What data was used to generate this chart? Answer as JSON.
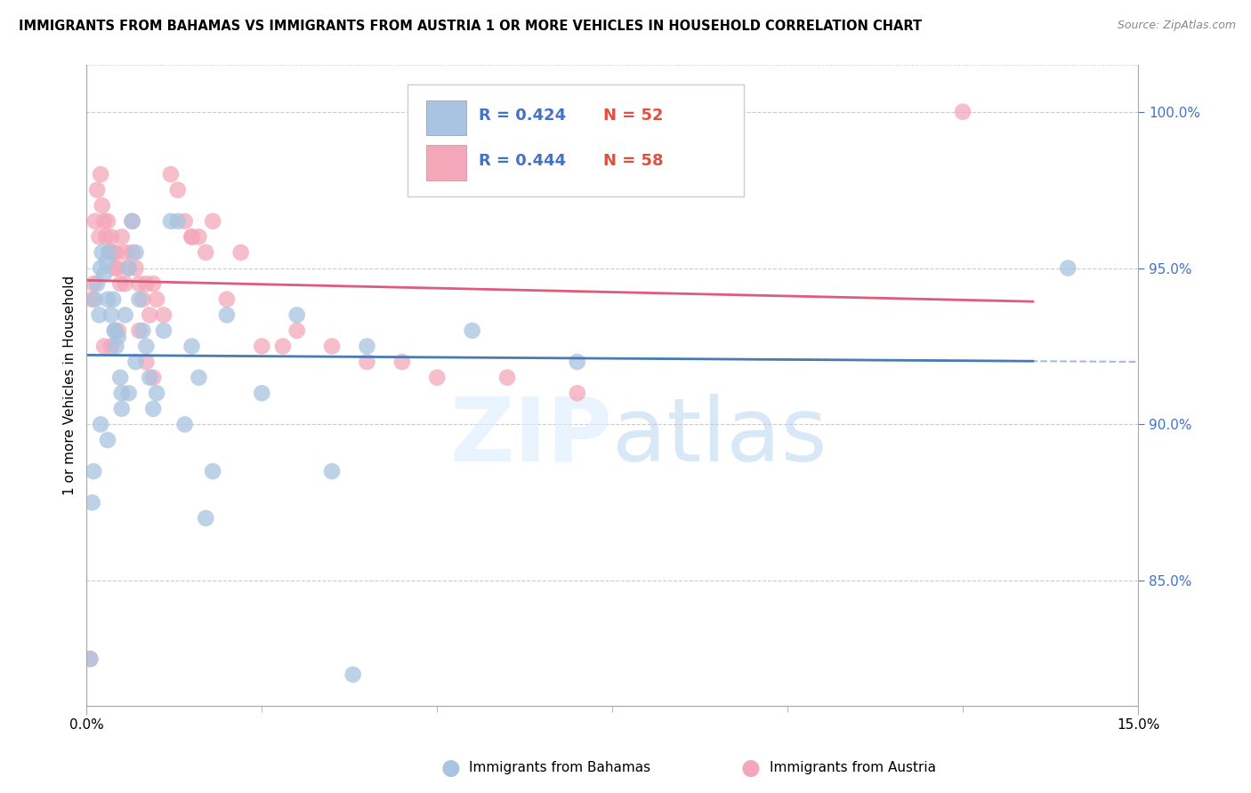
{
  "title": "IMMIGRANTS FROM BAHAMAS VS IMMIGRANTS FROM AUSTRIA 1 OR MORE VEHICLES IN HOUSEHOLD CORRELATION CHART",
  "source": "Source: ZipAtlas.com",
  "ylabel": "1 or more Vehicles in Household",
  "xlim": [
    0.0,
    15.0
  ],
  "ylim": [
    81.0,
    101.5
  ],
  "bahamas_R": 0.424,
  "bahamas_N": 52,
  "austria_R": 0.444,
  "austria_N": 58,
  "bahamas_color": "#a8c4e0",
  "austria_color": "#f4a7b9",
  "bahamas_line_color": "#4a7ab5",
  "austria_line_color": "#e05a7a",
  "background_color": "#ffffff",
  "grid_color": "#cccccc",
  "bahamas_x": [
    0.05,
    0.08,
    0.1,
    0.12,
    0.15,
    0.18,
    0.2,
    0.22,
    0.25,
    0.28,
    0.3,
    0.32,
    0.35,
    0.38,
    0.4,
    0.42,
    0.45,
    0.48,
    0.5,
    0.55,
    0.6,
    0.65,
    0.7,
    0.75,
    0.8,
    0.85,
    0.9,
    0.95,
    1.0,
    1.1,
    1.2,
    1.3,
    1.4,
    1.5,
    1.6,
    1.7,
    1.8,
    2.0,
    2.5,
    3.0,
    3.5,
    4.0,
    5.5,
    7.0,
    0.2,
    0.3,
    0.4,
    0.5,
    0.6,
    0.7,
    14.0,
    3.8
  ],
  "bahamas_y": [
    82.5,
    87.5,
    88.5,
    94.0,
    94.5,
    93.5,
    95.0,
    95.5,
    94.8,
    95.2,
    94.0,
    95.5,
    93.5,
    94.0,
    93.0,
    92.5,
    92.8,
    91.5,
    91.0,
    93.5,
    95.0,
    96.5,
    95.5,
    94.0,
    93.0,
    92.5,
    91.5,
    90.5,
    91.0,
    93.0,
    96.5,
    96.5,
    90.0,
    92.5,
    91.5,
    87.0,
    88.5,
    93.5,
    91.0,
    93.5,
    88.5,
    92.5,
    93.0,
    92.0,
    90.0,
    89.5,
    93.0,
    90.5,
    91.0,
    92.0,
    95.0,
    82.0
  ],
  "austria_x": [
    0.05,
    0.08,
    0.1,
    0.12,
    0.15,
    0.18,
    0.2,
    0.22,
    0.25,
    0.28,
    0.3,
    0.32,
    0.35,
    0.38,
    0.4,
    0.42,
    0.45,
    0.48,
    0.5,
    0.55,
    0.6,
    0.65,
    0.7,
    0.75,
    0.8,
    0.85,
    0.9,
    0.95,
    1.0,
    1.1,
    1.2,
    1.3,
    1.4,
    1.5,
    1.6,
    1.7,
    1.8,
    2.0,
    2.2,
    2.5,
    2.8,
    3.0,
    3.5,
    4.0,
    4.5,
    5.0,
    6.0,
    7.0,
    0.25,
    0.35,
    0.45,
    0.55,
    0.65,
    0.75,
    0.85,
    0.95,
    12.5,
    1.5
  ],
  "austria_y": [
    82.5,
    94.0,
    94.5,
    96.5,
    97.5,
    96.0,
    98.0,
    97.0,
    96.5,
    96.0,
    96.5,
    95.5,
    96.0,
    95.5,
    95.0,
    95.5,
    95.0,
    94.5,
    96.0,
    95.5,
    95.0,
    95.5,
    95.0,
    94.5,
    94.0,
    94.5,
    93.5,
    94.5,
    94.0,
    93.5,
    98.0,
    97.5,
    96.5,
    96.0,
    96.0,
    95.5,
    96.5,
    94.0,
    95.5,
    92.5,
    92.5,
    93.0,
    92.5,
    92.0,
    92.0,
    91.5,
    91.5,
    91.0,
    92.5,
    92.5,
    93.0,
    94.5,
    96.5,
    93.0,
    92.0,
    91.5,
    100.0,
    96.0
  ]
}
